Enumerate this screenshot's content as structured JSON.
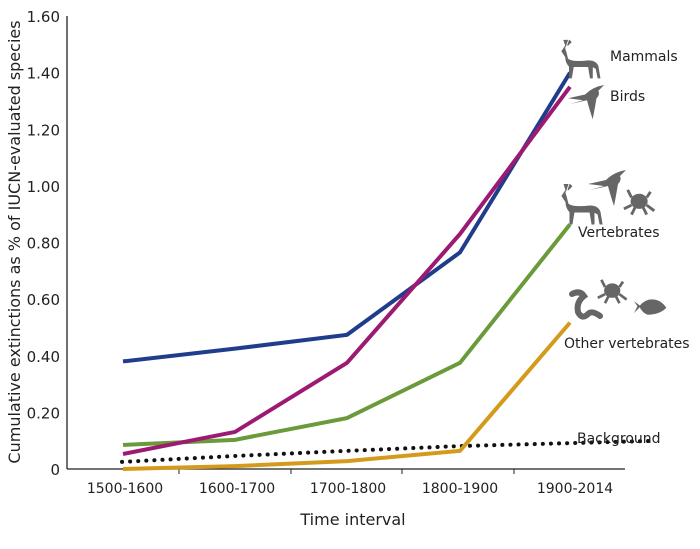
{
  "chart_data": {
    "type": "line",
    "title": "",
    "xlabel": "Time interval",
    "ylabel": "Cumulative extinctions as % of IUCN-evaluated species",
    "categories": [
      "1500-1600",
      "1600-1700",
      "1700-1800",
      "1800-1900",
      "1900-2014"
    ],
    "ylim": [
      0,
      1.6
    ],
    "yticks": [
      0,
      0.2,
      0.4,
      0.6,
      0.8,
      1.0,
      1.2,
      1.4,
      1.6
    ],
    "ytick_labels": [
      "0",
      "0.20",
      "0.40",
      "0.60",
      "0.80",
      "1.00",
      "1.20",
      "1.40",
      "1.60"
    ],
    "grid": false,
    "legend": "direct labels at line ends (right)",
    "series": [
      {
        "name": "Mammals",
        "color": "#1f3d8c",
        "style": "solid",
        "icons": [
          "deer-icon"
        ],
        "values": [
          0.38,
          0.425,
          0.474,
          0.765,
          1.4
        ]
      },
      {
        "name": "Birds",
        "color": "#9c1a72",
        "style": "solid",
        "icons": [
          "bird-icon"
        ],
        "values": [
          0.053,
          0.131,
          0.375,
          0.83,
          1.35
        ]
      },
      {
        "name": "Vertebrates",
        "color": "#6a9a3a",
        "style": "solid",
        "icons": [
          "deer-icon",
          "bird-icon",
          "frog-icon"
        ],
        "values": [
          0.085,
          0.103,
          0.18,
          0.375,
          0.864
        ]
      },
      {
        "name": "Other vertebrates",
        "color": "#d49a1c",
        "style": "solid",
        "icons": [
          "snake-icon",
          "frog-icon",
          "fish-icon"
        ],
        "values": [
          0.0,
          0.01,
          0.028,
          0.064,
          0.517
        ]
      },
      {
        "name": "Background",
        "color": "#111111",
        "style": "dotted",
        "icons": [],
        "values": [
          0.025,
          0.046,
          0.064,
          0.081,
          0.099
        ]
      }
    ]
  }
}
